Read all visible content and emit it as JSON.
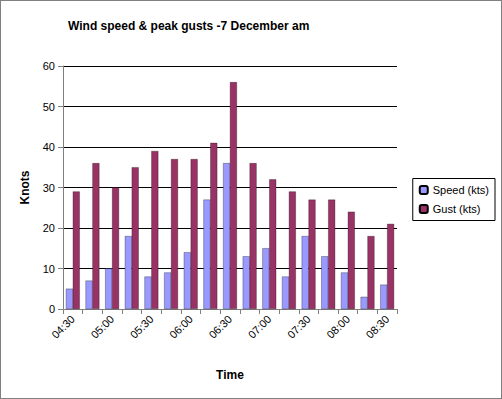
{
  "chart_data": {
    "type": "bar",
    "title": "Wind speed & peak gusts -7 December am",
    "x_label": "Time",
    "y_label": "Knots",
    "categories": [
      "04:30",
      null,
      "05:00",
      null,
      "05:30",
      null,
      "06:00",
      null,
      "06:30",
      null,
      "07:00",
      null,
      "07:30",
      null,
      "08:00",
      null,
      "08:30"
    ],
    "series": [
      {
        "name": "Speed (kts)",
        "color": "#9999ff",
        "values": [
          5,
          7,
          10,
          18,
          8,
          9,
          14,
          27,
          36,
          13,
          15,
          8,
          18,
          13,
          9,
          3,
          6
        ]
      },
      {
        "name": "Gust (kts)",
        "color": "#993366",
        "values": [
          29,
          36,
          30,
          35,
          39,
          37,
          37,
          41,
          56,
          36,
          32,
          29,
          27,
          27,
          24,
          18,
          21
        ]
      }
    ],
    "ylim": [
      0,
      60
    ],
    "yticks": [
      0,
      10,
      20,
      30,
      40,
      50,
      60
    ],
    "grid": true,
    "legend": "right"
  }
}
